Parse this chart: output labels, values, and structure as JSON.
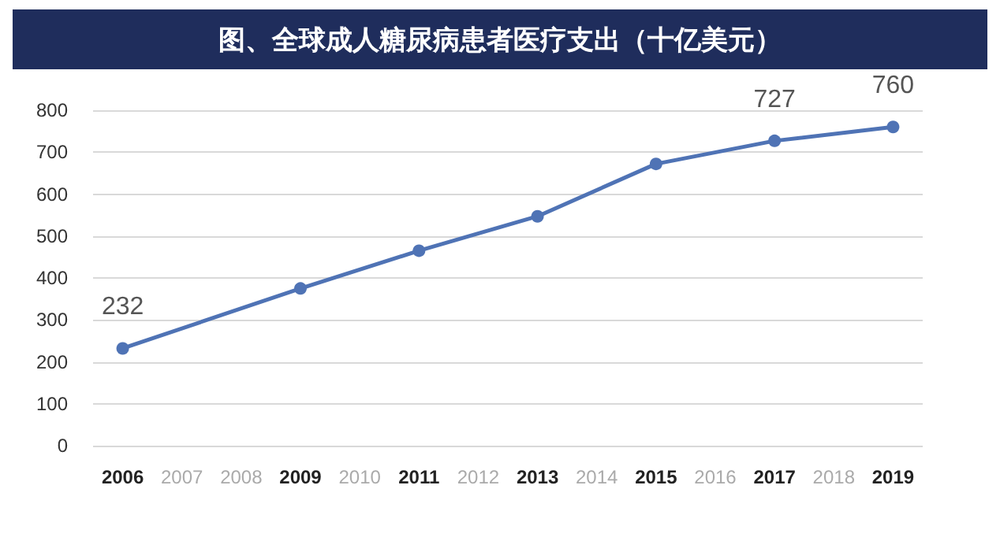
{
  "chart_data": {
    "type": "line",
    "title": "图、全球成人糖尿病患者医疗支出（十亿美元）",
    "categories": [
      "2006",
      "2007",
      "2008",
      "2009",
      "2010",
      "2011",
      "2012",
      "2013",
      "2014",
      "2015",
      "2016",
      "2017",
      "2018",
      "2019"
    ],
    "series": [
      {
        "color": "#4f73b5",
        "values": [
          232,
          null,
          null,
          375,
          null,
          465,
          null,
          547,
          null,
          672,
          null,
          727,
          null,
          760
        ],
        "value_labels": [
          "232",
          null,
          null,
          null,
          null,
          null,
          null,
          null,
          null,
          null,
          null,
          "727",
          null,
          "760"
        ]
      }
    ],
    "ylim": [
      0,
      800
    ],
    "yticks": [
      0,
      100,
      200,
      300,
      400,
      500,
      600,
      700,
      800
    ],
    "grid": "y",
    "marker": "circle",
    "line_style": "solid"
  }
}
